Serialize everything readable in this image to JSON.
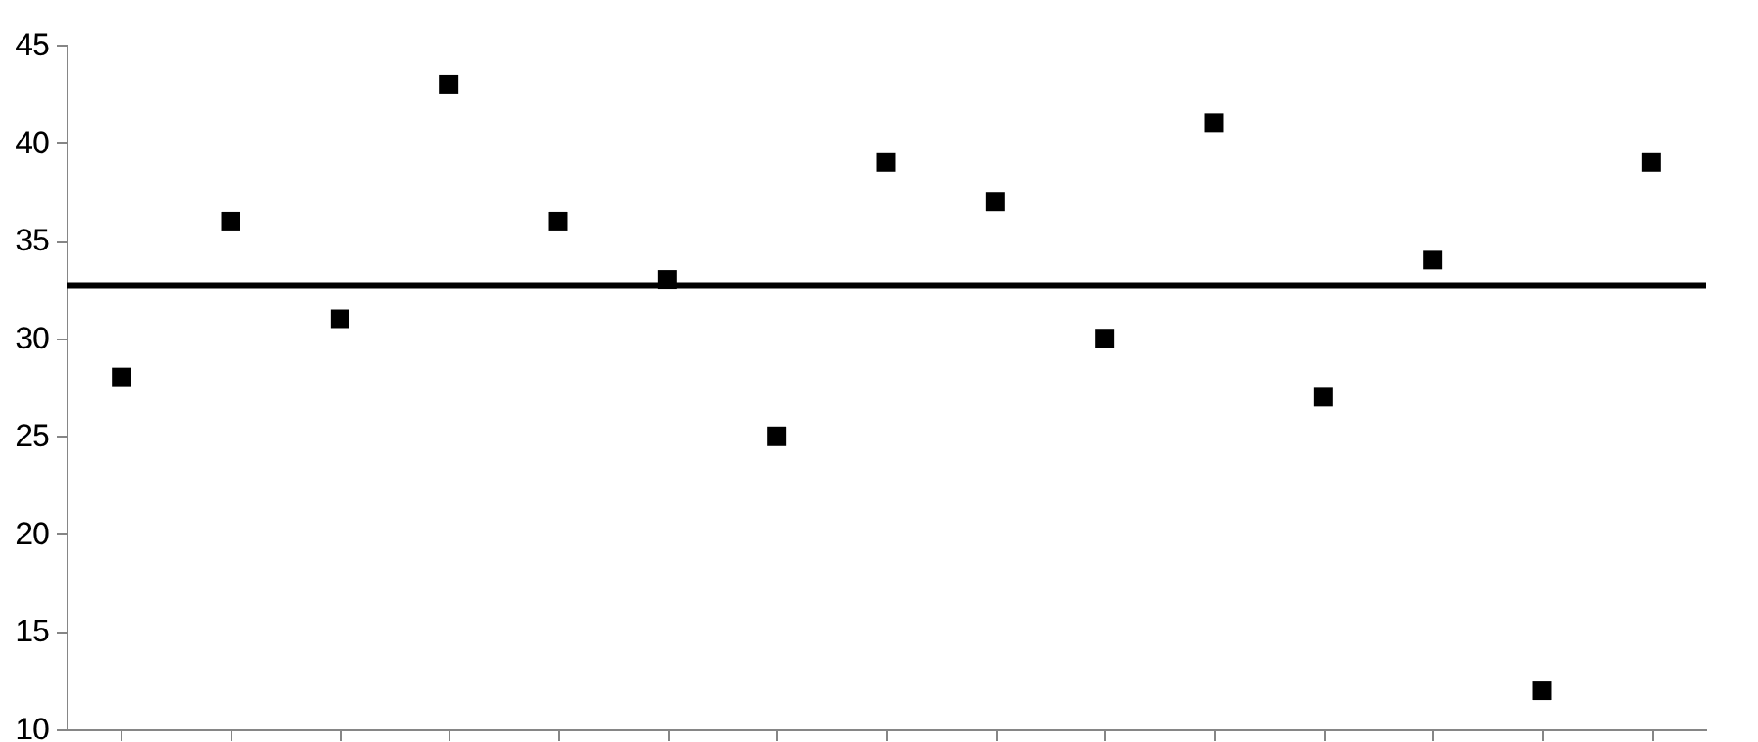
{
  "chart_data": {
    "type": "scatter",
    "categories": [
      null,
      null,
      null,
      null,
      null,
      null,
      null,
      null,
      null,
      null,
      null,
      null,
      null,
      null,
      null
    ],
    "series": [
      {
        "color": "#000000",
        "values": [
          28,
          36,
          31,
          43,
          36,
          33,
          25,
          39,
          37,
          30,
          41,
          27,
          34,
          12,
          39
        ]
      }
    ],
    "ylim": [
      10,
      45
    ],
    "yticks": [
      10,
      15,
      20,
      25,
      30,
      35,
      40,
      45
    ],
    "grid": false,
    "marker": "square",
    "ref_lines": [
      {
        "axis": "y",
        "value": 32.7,
        "color": "#000000",
        "line_style": "solid"
      }
    ]
  }
}
